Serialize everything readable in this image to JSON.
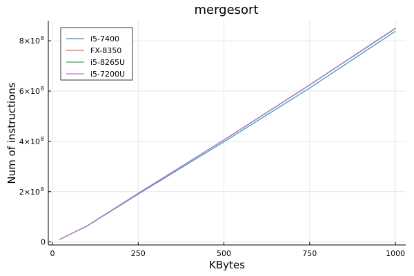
{
  "chart_data": {
    "type": "line",
    "title": "mergesort",
    "xlabel": "KBytes",
    "ylabel": "Num of instructions",
    "xlim": [
      -12,
      1030
    ],
    "ylim": [
      -12000000,
      880000000
    ],
    "x_ticks": [
      0,
      250,
      500,
      750,
      1000
    ],
    "x_tick_labels": [
      "0",
      "250",
      "500",
      "750",
      "1000"
    ],
    "y_ticks": [
      0,
      200000000,
      400000000,
      600000000,
      800000000
    ],
    "y_tick_labels": [
      {
        "mantissa": "0",
        "exp": ""
      },
      {
        "mantissa": "2×10",
        "exp": "8"
      },
      {
        "mantissa": "4×10",
        "exp": "8"
      },
      {
        "mantissa": "6×10",
        "exp": "8"
      },
      {
        "mantissa": "8×10",
        "exp": "8"
      }
    ],
    "grid": true,
    "legend_position": "top-left",
    "series": [
      {
        "name": "i5-7400",
        "color": "#2f8fd8",
        "x": [
          20,
          100,
          250,
          500,
          750,
          1000
        ],
        "y": [
          9000000,
          62000000,
          190000000,
          398000000,
          612000000,
          838000000
        ]
      },
      {
        "name": "FX-8350",
        "color": "#e26f46",
        "x": [
          20,
          100,
          250,
          500,
          750,
          1000
        ],
        "y": [
          9000000,
          63000000,
          193000000,
          406000000,
          625000000,
          850000000
        ]
      },
      {
        "name": "i5-8265U",
        "color": "#3da44d",
        "x": [
          20,
          100,
          250,
          500,
          750,
          1000
        ],
        "y": [
          9000000,
          63000000,
          193000000,
          405000000,
          624000000,
          849000000
        ]
      },
      {
        "name": "i5-7200U",
        "color": "#c271d2",
        "x": [
          20,
          100,
          250,
          500,
          750,
          1000
        ],
        "y": [
          9000000,
          63000000,
          193000000,
          406000000,
          625000000,
          851000000
        ]
      }
    ]
  }
}
